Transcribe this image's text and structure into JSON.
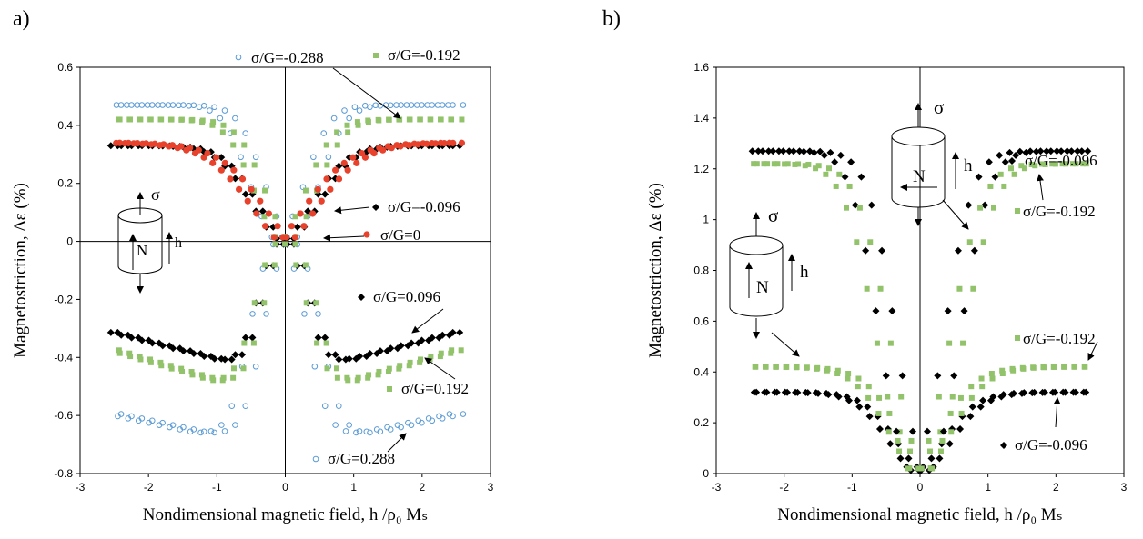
{
  "chart_data": [
    {
      "panel_label": "a)",
      "type": "scatter",
      "xlabel": "Nondimensional magnetic field, h /ρ₀ Mₛ",
      "ylabel": "Magnetostriction, Δε (%)",
      "xlim": [
        -3,
        3
      ],
      "ylim": [
        -0.8,
        0.6
      ],
      "xticks": [
        "-3",
        "-2",
        "-1",
        "0",
        "1",
        "2",
        "3"
      ],
      "yticks": [
        "-0.8",
        "-0.6",
        "-0.4",
        "-0.2",
        "0",
        "0.2",
        "0.4",
        "0.6"
      ],
      "grid": false,
      "series_styles": {
        "neg_0288": {
          "marker": "circle-open",
          "color": "#5b9bd5"
        },
        "neg_0192": {
          "marker": "square",
          "color": "#92c36b"
        },
        "neg_0096": {
          "marker": "diamond",
          "color": "#000000"
        },
        "zero": {
          "marker": "circle",
          "color": "#e8412c"
        },
        "pos_0096": {
          "marker": "diamond",
          "color": "#000000"
        },
        "pos_0192": {
          "marker": "square",
          "color": "#92c36b"
        },
        "pos_0288": {
          "marker": "circle-open",
          "color": "#5b9bd5"
        }
      },
      "annotations": {
        "neg_0288": "σ/G=-0.288",
        "neg_0192": "σ/G=-0.192",
        "neg_0096": "σ/G=-0.096",
        "zero": "σ/G=0",
        "pos_0096": "σ/G=0.096",
        "pos_0192": "σ/G=0.192",
        "pos_0288": "σ/G=0.288"
      },
      "inset_labels": {
        "sigma": "σ",
        "n": "N",
        "h": "h"
      }
    },
    {
      "panel_label": "b)",
      "type": "scatter",
      "xlabel": "Nondimensional magnetic field, h /ρ₀ Mₛ",
      "ylabel": "Magnetostriction, Δε (%)",
      "xlim": [
        -3,
        3
      ],
      "ylim": [
        0,
        1.6
      ],
      "xticks": [
        "-3",
        "-2",
        "-1",
        "0",
        "1",
        "2",
        "3"
      ],
      "yticks": [
        "0",
        "0.2",
        "0.4",
        "0.6",
        "0.8",
        "1",
        "1.2",
        "1.4",
        "1.6"
      ],
      "grid": false,
      "series_styles": {
        "trans_0096": {
          "marker": "diamond",
          "color": "#000000"
        },
        "trans_0192": {
          "marker": "square",
          "color": "#92c36b"
        },
        "long_0192": {
          "marker": "square",
          "color": "#92c36b"
        },
        "long_0096": {
          "marker": "diamond",
          "color": "#000000"
        }
      },
      "annotations": {
        "trans_0096": "σ/G=-0.096",
        "trans_0192": "σ/G=-0.192",
        "long_0192": "σ/G=-0.192",
        "long_0096": "σ/G=-0.096"
      },
      "inset_labels": {
        "sigma": "σ",
        "n": "N",
        "h": "h"
      }
    }
  ]
}
